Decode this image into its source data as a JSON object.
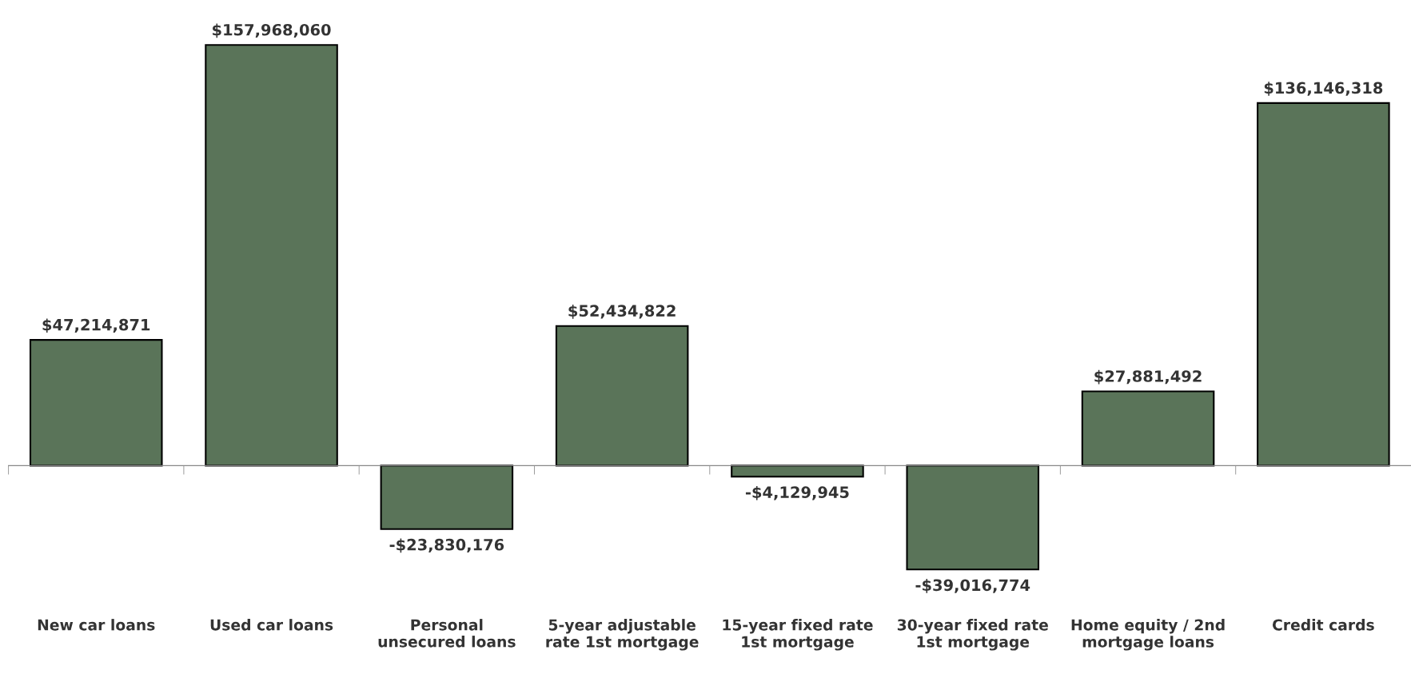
{
  "chart_data": {
    "type": "bar",
    "categories": [
      "New car loans",
      "Used car loans",
      "Personal\nunsecured loans",
      "5-year adjustable\nrate 1st mortgage",
      "15-year fixed rate\n1st mortgage",
      "30-year fixed rate\n1st mortgage",
      "Home equity / 2nd\nmortgage loans",
      "Credit cards"
    ],
    "values": [
      47214871,
      157968060,
      -23830176,
      52434822,
      -4129945,
      -39016774,
      27881492,
      136146318
    ],
    "value_labels": [
      "$47,214,871",
      "$157,968,060",
      "-$23,830,176",
      "$52,434,822",
      "-$4,129,945",
      "-$39,016,774",
      "$27,881,492",
      "$136,146,318"
    ],
    "color": "#5a7459",
    "legend": false
  }
}
